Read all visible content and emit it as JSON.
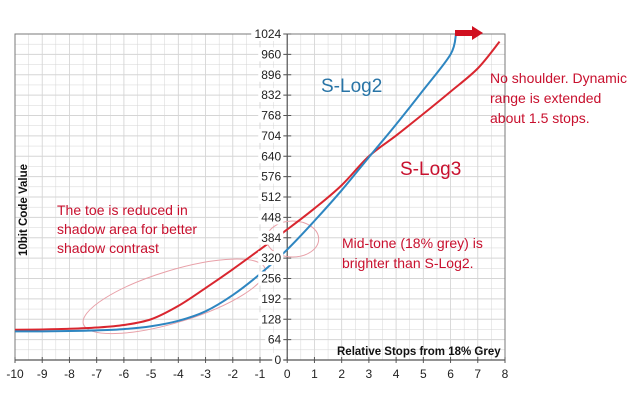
{
  "chart_data": {
    "type": "line",
    "title": "",
    "xlabel": "Relative Stops from 18% Grey",
    "ylabel": "10bit Code Value",
    "xlim": [
      -10,
      8
    ],
    "ylim": [
      0,
      1024
    ],
    "x_ticks": [
      "-10",
      "-9",
      "-8",
      "-7",
      "-6",
      "-5",
      "-4",
      "-3",
      "-2",
      "-1",
      "0",
      "1",
      "2",
      "3",
      "4",
      "5",
      "6",
      "7",
      "8"
    ],
    "y_ticks": [
      "0",
      "64",
      "128",
      "192",
      "256",
      "320",
      "384",
      "448",
      "512",
      "576",
      "640",
      "704",
      "768",
      "832",
      "896",
      "960",
      "1024"
    ],
    "grid": true,
    "series": [
      {
        "name": "S-Log2",
        "color": "#2e86c1",
        "x": [
          -10,
          -9,
          -8,
          -7,
          -6,
          -5,
          -4,
          -3,
          -2,
          -1,
          0,
          1,
          2,
          3,
          4,
          5,
          6,
          6.2
        ],
        "y": [
          90,
          90,
          91,
          93,
          97,
          106,
          123,
          153,
          204,
          270,
          347,
          437,
          533,
          637,
          740,
          848,
          960,
          1024
        ]
      },
      {
        "name": "S-Log3",
        "color": "#d9262f",
        "x": [
          -10,
          -9,
          -8,
          -7,
          -6,
          -5,
          -4,
          -3,
          -2,
          -1,
          0,
          1,
          2,
          3,
          4,
          5,
          6,
          7,
          7.8
        ],
        "y": [
          95,
          96,
          98,
          102,
          110,
          128,
          170,
          226,
          285,
          347,
          410,
          476,
          549,
          640,
          705,
          773,
          843,
          916,
          1000
        ]
      }
    ],
    "curve_labels": [
      "S-Log2",
      "S-Log3"
    ],
    "annotations": {
      "shoulder": [
        "No shoulder. Dynamic",
        "range is extended",
        "about 1.5 stops."
      ],
      "toe": [
        "The toe is reduced in",
        "shadow area for better",
        "shadow contrast"
      ],
      "midtone": [
        "Mid-tone (18% grey) is",
        "brighter than S-Log2."
      ]
    },
    "colors": {
      "annotation_text": "#c8102e",
      "slog2_label": "#2874a6",
      "slog3_label": "#c8102e",
      "arrow": "#d01020",
      "ellipse": "#e8a0a8",
      "grid": "#d5d5d5"
    }
  }
}
